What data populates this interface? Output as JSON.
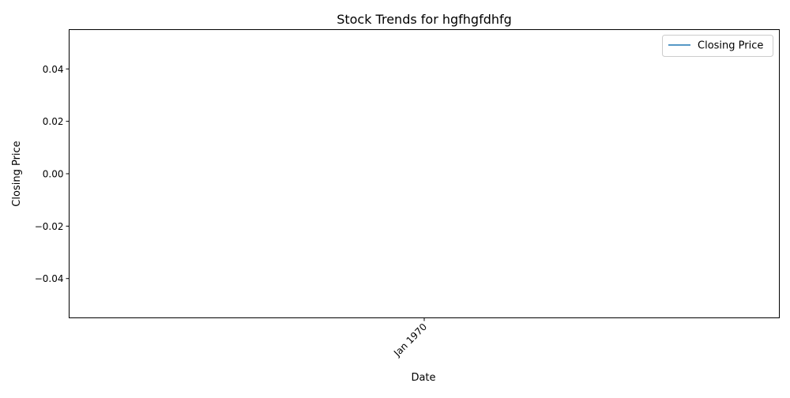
{
  "chart_data": {
    "type": "line",
    "title": "Stock Trends for hgfhgfdhfg",
    "xlabel": "Date",
    "ylabel": "Closing Price",
    "x_ticks": [
      "Jan 1970"
    ],
    "y_ticks": [
      "0.04",
      "0.02",
      "0.00",
      "−0.02",
      "−0.04"
    ],
    "ylim": [
      -0.055,
      0.055
    ],
    "series": [
      {
        "name": "Closing Price",
        "color": "#1f77b4",
        "x": [],
        "y": []
      }
    ],
    "grid": false,
    "legend_position": "top-right"
  }
}
